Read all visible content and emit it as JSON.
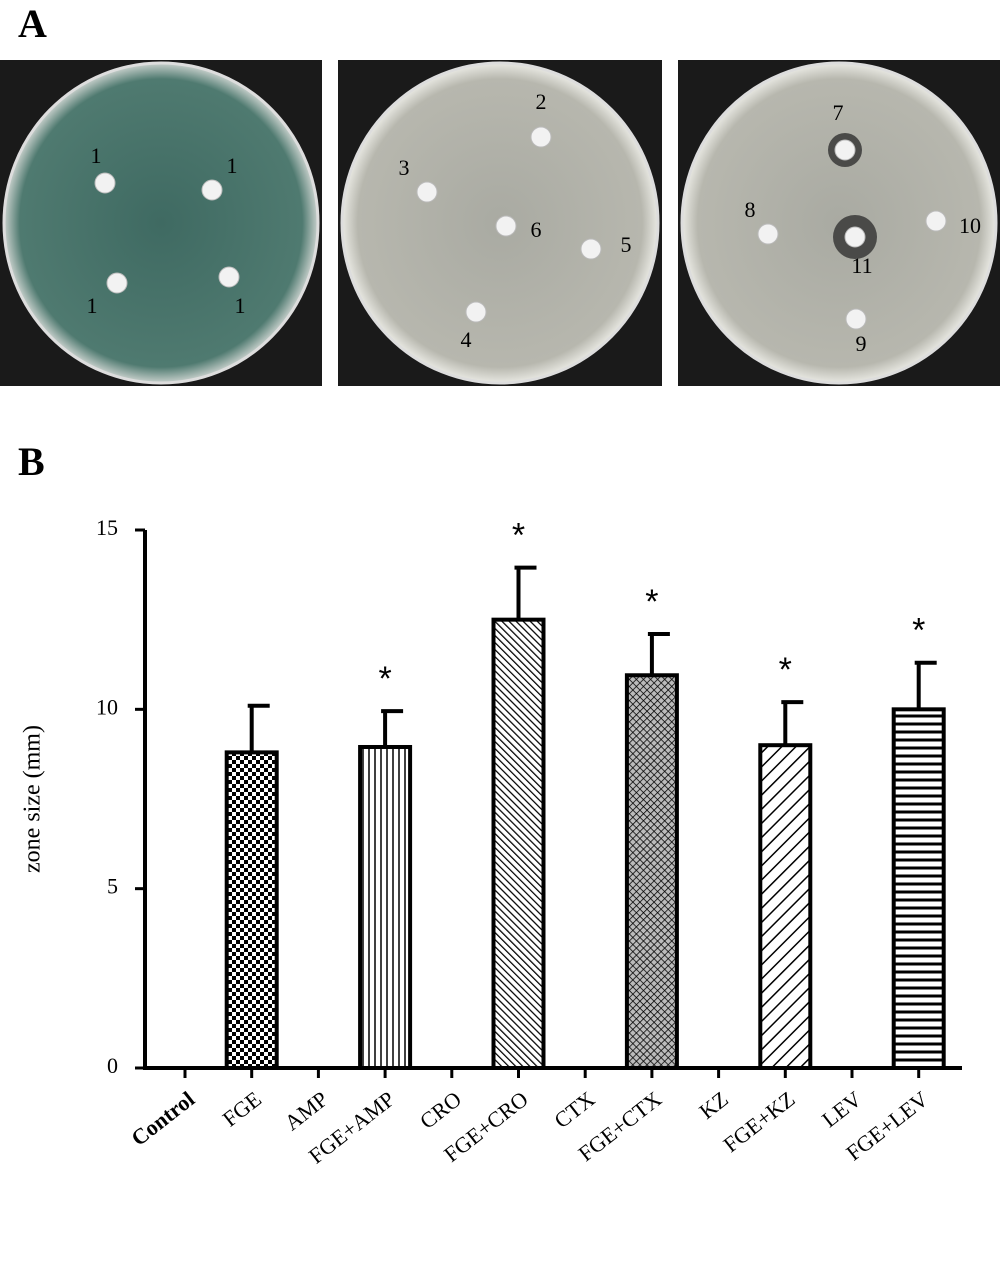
{
  "panels": {
    "a": "A",
    "b": "B"
  },
  "photos": [
    {
      "labels": [
        "1",
        "1",
        "1",
        "1"
      ]
    },
    {
      "labels": [
        "2",
        "3",
        "6",
        "5",
        "4"
      ]
    },
    {
      "labels": [
        "7",
        "8",
        "10",
        "11",
        "9"
      ]
    }
  ],
  "chart_data": {
    "type": "bar",
    "y_label": "zone size (mm)",
    "categories": [
      "Control",
      "FGE",
      "AMP",
      "FGE+AMP",
      "CRO",
      "FGE+CRO",
      "CTX",
      "FGE+CTX",
      "KZ",
      "FGE+KZ",
      "LEV",
      "FGE+LEV"
    ],
    "values": [
      null,
      8.8,
      null,
      8.95,
      null,
      12.5,
      null,
      10.95,
      null,
      9.0,
      null,
      10.0
    ],
    "errors": [
      null,
      1.3,
      null,
      1.0,
      null,
      1.45,
      null,
      1.15,
      null,
      1.2,
      null,
      1.3
    ],
    "annotations": [
      null,
      null,
      null,
      "*",
      null,
      "*",
      null,
      "*",
      null,
      "*",
      null,
      "*"
    ],
    "patterns": [
      null,
      "checker",
      null,
      "vertical",
      null,
      "diag-back",
      null,
      "crosshatch",
      null,
      "diag-forward",
      null,
      "horizontal"
    ],
    "color": "#000000",
    "ylim": [
      0,
      15
    ],
    "yticks": [
      0,
      5,
      10,
      15
    ],
    "grid": false
  }
}
